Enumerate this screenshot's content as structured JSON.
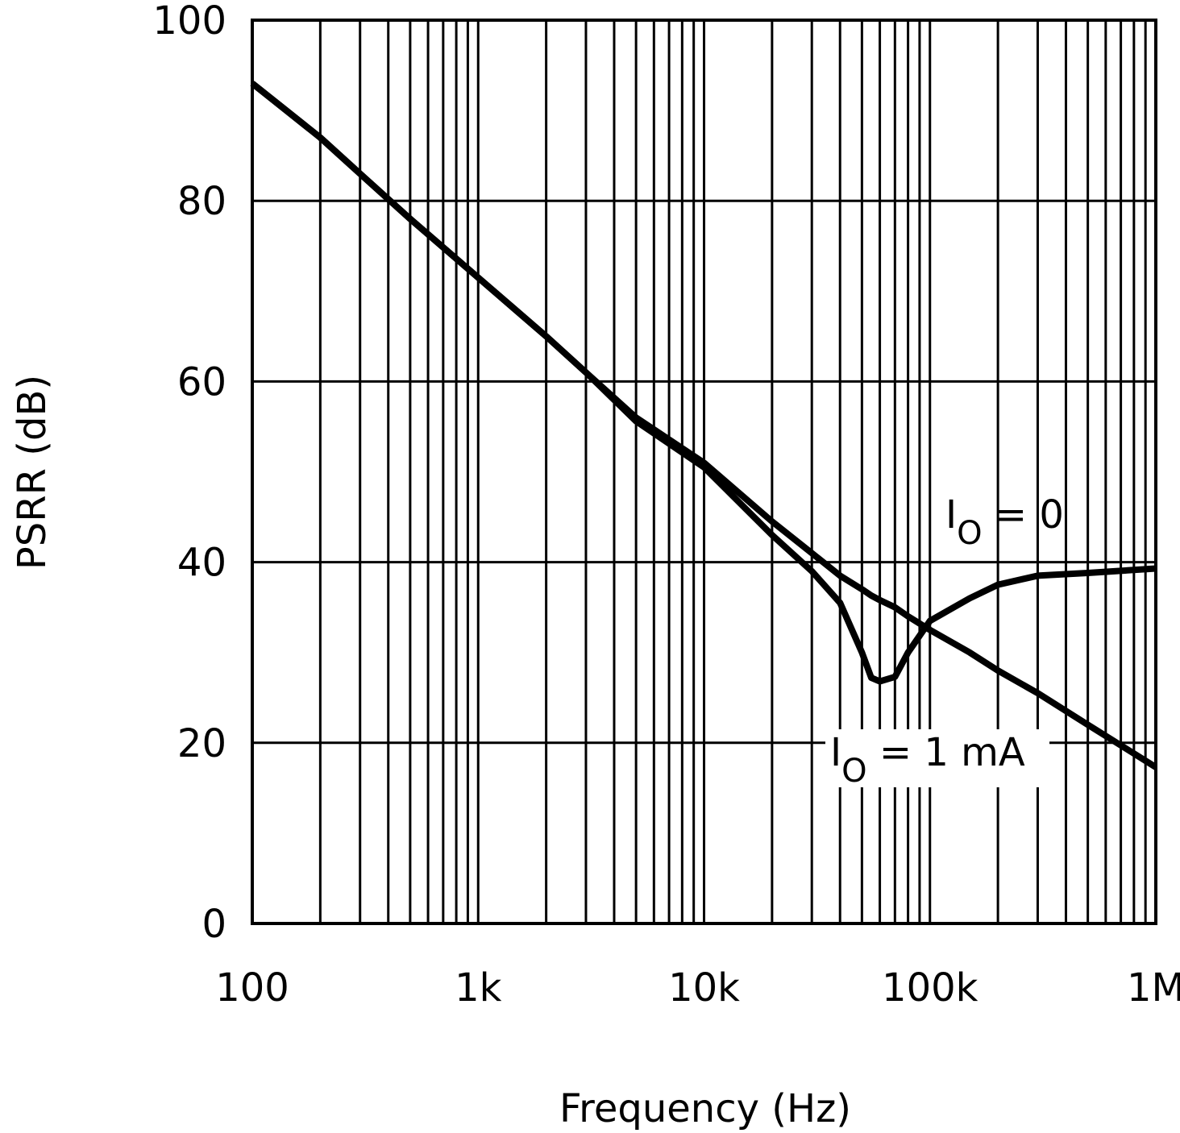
{
  "chart_data": {
    "type": "line",
    "x_label": "Frequency (Hz)",
    "y_label": "PSRR (dB)",
    "x_scale": "log",
    "grid": true,
    "color": "#000000",
    "xlim": [
      100,
      1000000
    ],
    "ylim": [
      0,
      100
    ],
    "xticks": [
      100,
      {
        "value": 1000,
        "label": "1k"
      },
      {
        "value": 10000,
        "label": "10k"
      },
      {
        "value": 100000,
        "label": "100k"
      },
      {
        "value": 1000000,
        "label": "1M"
      }
    ],
    "yticks": [
      0,
      20,
      40,
      60,
      80,
      100
    ],
    "x": [
      100,
      200,
      300,
      500,
      1000,
      2000,
      3000,
      5000,
      10000,
      20000,
      30000,
      40000,
      50000,
      55000,
      60000,
      70000,
      80000,
      100000,
      150000,
      200000,
      300000,
      500000,
      1000000
    ],
    "series": [
      {
        "color": "#000000",
        "values": [
          93,
          87,
          83,
          78,
          71.5,
          65,
          61,
          56,
          51,
          44.5,
          41,
          38.5,
          37,
          36.3,
          35.8,
          35,
          34,
          32.5,
          30,
          28,
          25.5,
          22,
          17.3
        ]
      },
      {
        "color": "#000000",
        "values": [
          93,
          87,
          83,
          78,
          71.5,
          65,
          61,
          55.6,
          50.5,
          43,
          39,
          35.5,
          30,
          27.2,
          26.8,
          27.3,
          30,
          33.5,
          36,
          37.5,
          38.5,
          38.8,
          39.3
        ]
      }
    ],
    "annotations": [
      {
        "text": "I",
        "subscript": "O",
        "rest": " = 0"
      },
      {
        "text": "I",
        "subscript": "O",
        "rest": " = 1 mA"
      }
    ]
  }
}
